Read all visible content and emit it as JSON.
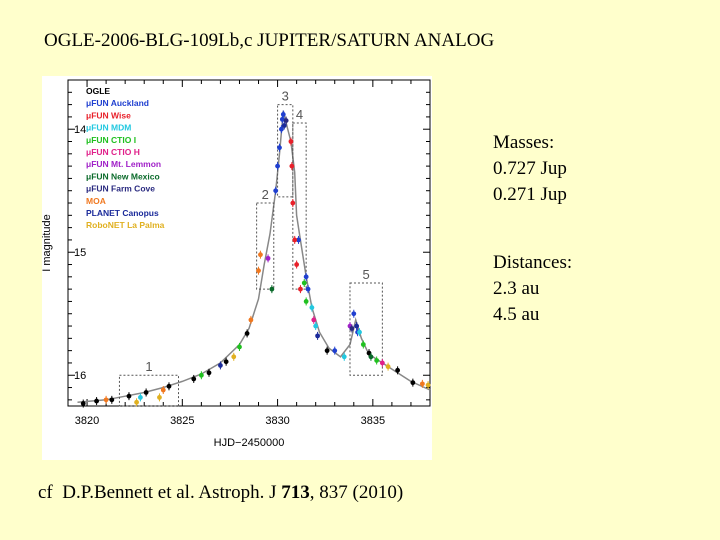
{
  "title": "OGLE-2006-BLG-109Lb,c JUPITER/SATURN ANALOG",
  "masses": {
    "heading": "Masses:",
    "values": [
      "0.727 Jup",
      "0.271 Jup"
    ]
  },
  "distances": {
    "heading": "Distances:",
    "values": [
      "2.3 au",
      "4.5 au"
    ]
  },
  "citation": {
    "prefix": "cf  D.P.Bennett et al. Astroph. J ",
    "volume": "713",
    "suffix": ", 837 (2010)"
  },
  "chart_data": {
    "type": "scatter",
    "xlabel": "HJD−2450000",
    "ylabel": "I magnitude",
    "xlim": [
      3819,
      3838
    ],
    "ylim": [
      16.25,
      13.6
    ],
    "y_inverted": true,
    "xticks": [
      3820,
      3825,
      3830,
      3835
    ],
    "yticks": [
      14,
      15,
      16
    ],
    "legend": {
      "placement": "top-left",
      "entries": [
        {
          "label": "OGLE",
          "color": "#000000"
        },
        {
          "label": "μFUN Auckland",
          "color": "#1F3FD0"
        },
        {
          "label": "μFUN Wise",
          "color": "#E8202A"
        },
        {
          "label": "μFUN MDM",
          "color": "#22C8E0"
        },
        {
          "label": "μFUN CTIO I",
          "color": "#20C020"
        },
        {
          "label": "μFUN CTIO H",
          "color": "#E0208A"
        },
        {
          "label": "μFUN Mt. Lemmon",
          "color": "#A020C8"
        },
        {
          "label": "μFUN New Mexico",
          "color": "#0A6A2A"
        },
        {
          "label": "μFUN Farm Cove",
          "color": "#2A2A80"
        },
        {
          "label": "MOA",
          "color": "#F07820"
        },
        {
          "label": "PLANET Canopus",
          "color": "#1A2A9A"
        },
        {
          "label": "RoboNET La Palma",
          "color": "#E0B020"
        }
      ]
    },
    "model_curve": {
      "x": [
        3819.5,
        3821,
        3822,
        3823,
        3824,
        3825,
        3826,
        3827,
        3828,
        3828.5,
        3829,
        3829.3,
        3829.6,
        3829.9,
        3830.1,
        3830.3,
        3830.5,
        3830.7,
        3830.9,
        3831.0,
        3831.2,
        3831.5,
        3831.8,
        3832.2,
        3832.7,
        3833.3,
        3833.8,
        3834.1,
        3834.4,
        3834.7,
        3835.0,
        3835.5,
        3836.0,
        3837.0,
        3838.0
      ],
      "y": [
        16.22,
        16.2,
        16.17,
        16.14,
        16.1,
        16.05,
        15.99,
        15.9,
        15.75,
        15.62,
        15.38,
        15.1,
        14.85,
        14.5,
        14.2,
        13.85,
        13.98,
        14.1,
        14.35,
        14.7,
        14.9,
        15.2,
        15.45,
        15.65,
        15.78,
        15.85,
        15.75,
        15.55,
        15.7,
        15.8,
        15.85,
        15.9,
        15.95,
        16.05,
        16.12
      ]
    },
    "series": [
      {
        "name": "OGLE",
        "x": [
          3819.8,
          3820.5,
          3821.3,
          3822.2,
          3823.1,
          3824.3,
          3825.6,
          3826.4,
          3827.3,
          3828.4,
          3832.6,
          3834.8,
          3836.3,
          3837.1
        ],
        "y": [
          16.23,
          16.21,
          16.2,
          16.17,
          16.14,
          16.09,
          16.03,
          15.98,
          15.89,
          15.66,
          15.8,
          15.82,
          15.96,
          16.06
        ]
      },
      {
        "name": "μFUN Auckland",
        "x": [
          3829.9,
          3830.0,
          3830.1,
          3830.2,
          3830.25,
          3830.3,
          3831.1,
          3831.5,
          3831.6,
          3833.0,
          3834.0,
          3834.2
        ],
        "y": [
          14.5,
          14.3,
          14.15,
          14.0,
          13.92,
          13.88,
          14.9,
          15.2,
          15.3,
          15.8,
          15.5,
          15.65
        ]
      },
      {
        "name": "μFUN Wise",
        "x": [
          3830.7,
          3830.75,
          3830.8,
          3830.9,
          3831.0,
          3831.2
        ],
        "y": [
          14.1,
          14.3,
          14.6,
          14.9,
          15.1,
          15.3
        ]
      },
      {
        "name": "μFUN MDM",
        "x": [
          3822.8,
          3831.8,
          3832.0,
          3833.5,
          3834.3
        ],
        "y": [
          16.18,
          15.45,
          15.6,
          15.85,
          15.65
        ]
      },
      {
        "name": "μFUN CTIO I",
        "x": [
          3826.0,
          3828.0,
          3831.4,
          3831.5,
          3834.5,
          3835.2
        ],
        "y": [
          16.0,
          15.77,
          15.25,
          15.4,
          15.75,
          15.88
        ]
      },
      {
        "name": "μFUN CTIO H",
        "x": [
          3831.9,
          3835.5
        ],
        "y": [
          15.55,
          15.9
        ]
      },
      {
        "name": "μFUN Mt. Lemmon",
        "x": [
          3829.5,
          3833.8
        ],
        "y": [
          15.05,
          15.6
        ]
      },
      {
        "name": "μFUN New Mexico",
        "x": [
          3829.7,
          3834.9
        ],
        "y": [
          15.3,
          15.85
        ]
      },
      {
        "name": "μFUN Farm Cove",
        "x": [
          3830.45,
          3833.9
        ],
        "y": [
          13.93,
          15.62
        ]
      },
      {
        "name": "MOA",
        "x": [
          3821.0,
          3824.0,
          3828.6,
          3829.0,
          3829.1,
          3837.6
        ],
        "y": [
          16.2,
          16.12,
          15.55,
          15.15,
          15.02,
          16.07
        ]
      },
      {
        "name": "PLANET Canopus",
        "x": [
          3827.0,
          3830.35,
          3832.1,
          3834.15
        ],
        "y": [
          15.92,
          13.97,
          15.68,
          15.6
        ]
      },
      {
        "name": "RoboNET La Palma",
        "x": [
          3822.6,
          3823.8,
          3827.7,
          3835.8,
          3837.9
        ],
        "y": [
          16.22,
          16.18,
          15.85,
          15.93,
          16.08
        ]
      }
    ],
    "regions": [
      {
        "label": "1",
        "x0": 3821.7,
        "x1": 3824.8,
        "y0": 16.25,
        "y1": 16.0
      },
      {
        "label": "2",
        "x0": 3828.9,
        "x1": 3829.8,
        "y0": 15.3,
        "y1": 14.6
      },
      {
        "label": "3",
        "x0": 3830.0,
        "x1": 3830.8,
        "y0": 14.55,
        "y1": 13.8
      },
      {
        "label": "4",
        "x0": 3830.8,
        "x1": 3831.5,
        "y0": 15.3,
        "y1": 13.95
      },
      {
        "label": "5",
        "x0": 3833.8,
        "x1": 3835.5,
        "y0": 16.0,
        "y1": 15.25
      }
    ]
  }
}
